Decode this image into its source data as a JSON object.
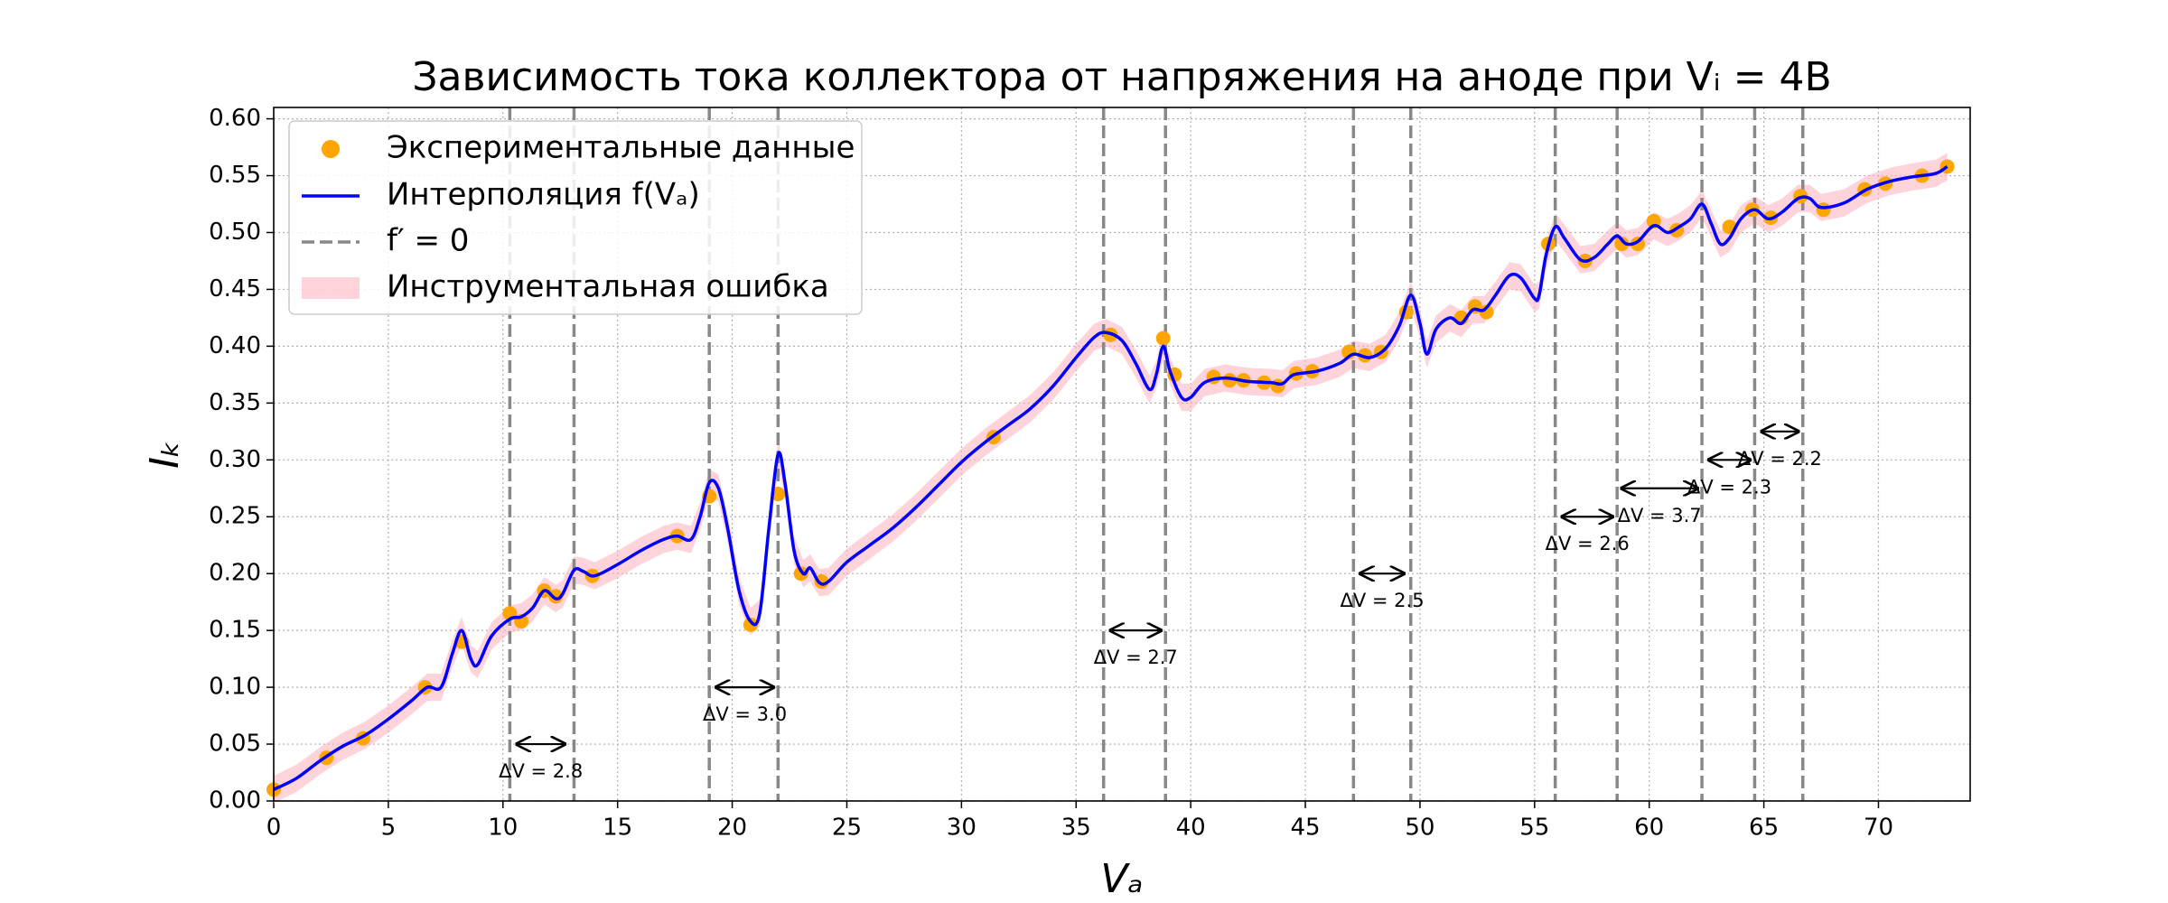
{
  "chart_data": {
    "type": "line",
    "title": "Зависимость тока коллектора от напряжения на аноде при Vᵢ = 4B",
    "x_label": "Vₐ",
    "y_label": "Iₖ",
    "xlim": [
      0,
      74
    ],
    "ylim": [
      0,
      0.61
    ],
    "xticks": [
      0,
      5,
      10,
      15,
      20,
      25,
      30,
      35,
      40,
      45,
      50,
      55,
      60,
      65,
      70
    ],
    "yticks": [
      {
        "value": 0,
        "label": "0.00"
      },
      {
        "value": 0.05,
        "label": "0.05"
      },
      {
        "value": 0.1,
        "label": "0.10"
      },
      {
        "value": 0.15,
        "label": "0.15"
      },
      {
        "value": 0.2,
        "label": "0.20"
      },
      {
        "value": 0.25,
        "label": "0.25"
      },
      {
        "value": 0.3,
        "label": "0.30"
      },
      {
        "value": 0.35,
        "label": "0.35"
      },
      {
        "value": 0.4,
        "label": "0.40"
      },
      {
        "value": 0.45,
        "label": "0.45"
      },
      {
        "value": 0.5,
        "label": "0.50"
      },
      {
        "value": 0.55,
        "label": "0.55"
      },
      {
        "value": 0.6,
        "label": "0.60"
      }
    ],
    "grid": true,
    "legend": "upper left",
    "band": {
      "name": "Инструментальная ошибка",
      "color": "#ffb6c1",
      "error": 0.012
    },
    "vlines": {
      "name": "f′ = 0",
      "color": "#888888",
      "x": [
        10.3,
        13.1,
        19.0,
        22.0,
        36.2,
        38.9,
        47.1,
        49.6,
        55.9,
        58.6,
        62.3,
        64.6,
        66.7
      ]
    },
    "series": [
      {
        "name": "Экспериментальные данные",
        "type": "scatter",
        "color": "#ffa500",
        "x": [
          0,
          2.3,
          3.9,
          6.6,
          8.2,
          10.3,
          10.8,
          11.8,
          12.3,
          13.9,
          17.6,
          19.0,
          20.8,
          22.0,
          23.0,
          23.9,
          31.4,
          36.5,
          38.8,
          39.3,
          41.0,
          41.7,
          42.3,
          43.2,
          43.8,
          44.6,
          45.3,
          46.9,
          47.6,
          48.3,
          49.4,
          51.8,
          52.4,
          52.9,
          55.6,
          57.2,
          58.8,
          59.5,
          60.2,
          61.2,
          63.5,
          64.5,
          65.3,
          66.6,
          67.6,
          69.4,
          70.3,
          71.9,
          73
        ],
        "values": [
          0.01,
          0.038,
          0.055,
          0.1,
          0.14,
          0.165,
          0.158,
          0.185,
          0.18,
          0.198,
          0.233,
          0.268,
          0.155,
          0.27,
          0.2,
          0.193,
          0.32,
          0.41,
          0.407,
          0.375,
          0.373,
          0.37,
          0.37,
          0.368,
          0.365,
          0.376,
          0.378,
          0.395,
          0.392,
          0.395,
          0.43,
          0.425,
          0.435,
          0.43,
          0.49,
          0.475,
          0.49,
          0.49,
          0.51,
          0.502,
          0.505,
          0.52,
          0.513,
          0.532,
          0.52,
          0.538,
          0.543,
          0.55,
          0.558
        ]
      },
      {
        "name": "Интерполяция f(Vₐ)",
        "type": "line",
        "color": "#0000ff",
        "x": [
          0,
          1,
          2,
          3,
          4,
          5,
          6,
          6.7,
          7.3,
          7.8,
          8.2,
          8.6,
          8.9,
          9.5,
          10.3,
          10.8,
          11.3,
          11.8,
          12.3,
          12.6,
          13.1,
          13.5,
          14,
          15,
          16,
          17,
          17.6,
          18.2,
          18.6,
          19.0,
          19.4,
          19.8,
          20.3,
          20.8,
          21.2,
          21.6,
          22.0,
          22.3,
          22.7,
          23.1,
          23.4,
          23.8,
          24.2,
          25,
          26,
          27,
          28,
          29,
          30,
          31,
          32,
          33,
          34,
          35,
          35.8,
          36.3,
          37,
          37.6,
          38.2,
          38.5,
          38.8,
          39.1,
          39.6,
          40,
          40.6,
          41.5,
          42.5,
          43.5,
          44,
          44.5,
          45.5,
          46.5,
          47.1,
          47.8,
          48.5,
          49.1,
          49.6,
          50,
          50.3,
          50.7,
          51.3,
          51.8,
          52.3,
          52.8,
          53.3,
          53.9,
          54.4,
          55.0,
          55.2,
          55.5,
          55.9,
          56.3,
          57.0,
          57.6,
          58.2,
          58.6,
          59.0,
          59.5,
          60.2,
          60.8,
          61.3,
          61.8,
          62.3,
          62.7,
          63.1,
          63.5,
          64.0,
          64.6,
          65.2,
          65.8,
          66.5,
          67.0,
          67.5,
          68.5,
          69.5,
          70.5,
          71.5,
          72.5,
          73
        ],
        "values": [
          0.01,
          0.02,
          0.035,
          0.048,
          0.058,
          0.072,
          0.088,
          0.1,
          0.1,
          0.13,
          0.15,
          0.125,
          0.12,
          0.145,
          0.16,
          0.162,
          0.17,
          0.185,
          0.178,
          0.182,
          0.203,
          0.202,
          0.198,
          0.208,
          0.22,
          0.23,
          0.233,
          0.23,
          0.25,
          0.28,
          0.275,
          0.24,
          0.185,
          0.158,
          0.165,
          0.24,
          0.305,
          0.28,
          0.22,
          0.2,
          0.205,
          0.192,
          0.193,
          0.21,
          0.225,
          0.24,
          0.258,
          0.278,
          0.298,
          0.315,
          0.33,
          0.345,
          0.365,
          0.39,
          0.408,
          0.412,
          0.405,
          0.385,
          0.362,
          0.375,
          0.4,
          0.378,
          0.355,
          0.355,
          0.368,
          0.372,
          0.369,
          0.368,
          0.367,
          0.375,
          0.378,
          0.385,
          0.393,
          0.39,
          0.398,
          0.418,
          0.445,
          0.42,
          0.393,
          0.415,
          0.425,
          0.42,
          0.432,
          0.432,
          0.445,
          0.462,
          0.46,
          0.442,
          0.445,
          0.48,
          0.505,
          0.495,
          0.476,
          0.478,
          0.49,
          0.497,
          0.49,
          0.492,
          0.506,
          0.5,
          0.505,
          0.512,
          0.525,
          0.508,
          0.49,
          0.495,
          0.512,
          0.52,
          0.512,
          0.518,
          0.53,
          0.53,
          0.522,
          0.526,
          0.538,
          0.545,
          0.549,
          0.552,
          0.558
        ]
      }
    ],
    "annotations": [
      {
        "text": "ΔV = 2.8",
        "x1": 10.6,
        "x2": 12.7,
        "y": 0.05
      },
      {
        "text": "ΔV = 3.0",
        "x1": 19.3,
        "x2": 21.8,
        "y": 0.1
      },
      {
        "text": "ΔV = 2.7",
        "x1": 36.5,
        "x2": 38.7,
        "y": 0.15
      },
      {
        "text": "ΔV = 2.5",
        "x1": 47.4,
        "x2": 49.3,
        "y": 0.2
      },
      {
        "text": "ΔV = 2.6",
        "x1": 56.2,
        "x2": 58.4,
        "y": 0.25
      },
      {
        "text": "ΔV = 3.7",
        "x1": 58.8,
        "x2": 62.1,
        "y": 0.275
      },
      {
        "text": "ΔV = 2.3",
        "x1": 62.6,
        "x2": 64.4,
        "y": 0.3
      },
      {
        "text": "ΔV = 2.2",
        "x1": 64.9,
        "x2": 66.5,
        "y": 0.325
      }
    ]
  }
}
